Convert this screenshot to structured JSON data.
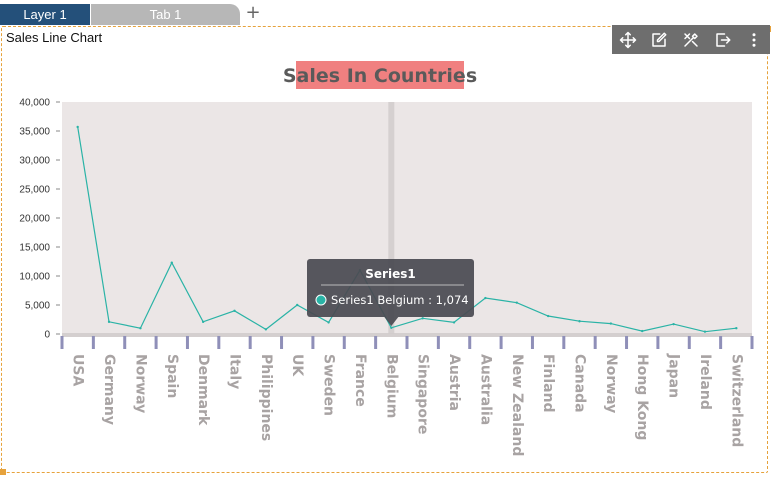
{
  "tabs": {
    "layer_label": "Layer 1",
    "tab_label": "Tab 1",
    "add_label": "+"
  },
  "widget": {
    "title": "Sales Line Chart",
    "toolbar_icons": [
      "move-icon",
      "edit-icon",
      "tools-icon",
      "export-icon",
      "more-icon"
    ]
  },
  "colors": {
    "line": "#2ab3a6",
    "plot_bg": "#ebe6e6",
    "title_bg": "#f08080",
    "title_text": "#5a5a5a",
    "tick_marks": "#8f8fb8",
    "label_text": "#a8a3a3"
  },
  "chart_data": {
    "type": "line",
    "title": "Sales In Countries",
    "categories": [
      "USA",
      "Germany",
      "Norway",
      "Spain",
      "Denmark",
      "Italy",
      "Philippines",
      "UK",
      "Sweden",
      "France",
      "Belgium",
      "Singapore",
      "Austria",
      "Australia",
      "New Zealand",
      "Finland",
      "Canada",
      "Norway",
      "Hong Kong",
      "Japan",
      "Ireland",
      "Switzerland"
    ],
    "series": [
      {
        "name": "Series1",
        "values": [
          35700,
          2100,
          1000,
          12300,
          2100,
          4000,
          800,
          5000,
          2000,
          11000,
          1074,
          2700,
          2000,
          6200,
          5400,
          3100,
          2200,
          1800,
          500,
          1700,
          400,
          1000
        ]
      }
    ],
    "ylim": [
      0,
      40000
    ],
    "yticks": [
      "0",
      "5,000",
      "10,000",
      "15,000",
      "20,000",
      "25,000",
      "30,000",
      "35,000",
      "40,000"
    ],
    "xlabel": "",
    "ylabel": "",
    "grid": false,
    "legend": "none",
    "tooltip": {
      "title": "Series1",
      "text": "Series1 Belgium : 1,074",
      "category": "Belgium"
    }
  }
}
